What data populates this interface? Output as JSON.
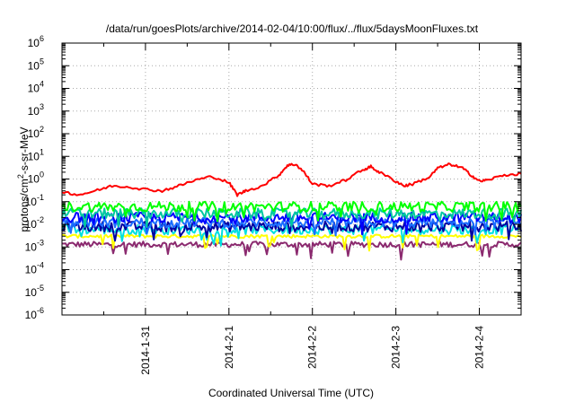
{
  "chart_data": {
    "type": "line",
    "title": "/data/run/goesPlots/archive/2014-02-04/10:00/flux/../flux/5daysMoonFluxes.txt",
    "xlabel": "Coordinated Universal Time (UTC)",
    "ylabel": "protons/cm2-s-sr-MeV",
    "yscale": "log",
    "ylim": [
      1e-06,
      1000000.0
    ],
    "xlim_days": [
      0,
      5.5
    ],
    "grid": true,
    "x_ticks": [
      {
        "label": "2014-1-31",
        "day": 1
      },
      {
        "label": "2014-2-1",
        "day": 2
      },
      {
        "label": "2014-2-2",
        "day": 3
      },
      {
        "label": "2014-2-3",
        "day": 4
      },
      {
        "label": "2014-2-4",
        "day": 5
      }
    ],
    "y_ticks": [
      -6,
      -5,
      -4,
      -3,
      -2,
      -1,
      0,
      1,
      2,
      3,
      4,
      5,
      6
    ],
    "series": [
      {
        "color": "#ff0000",
        "points": [
          [
            0.0,
            0.28
          ],
          [
            0.2,
            0.2
          ],
          [
            0.4,
            0.3
          ],
          [
            0.6,
            0.5
          ],
          [
            0.8,
            0.45
          ],
          [
            1.0,
            0.35
          ],
          [
            1.2,
            0.3
          ],
          [
            1.4,
            0.5
          ],
          [
            1.6,
            0.9
          ],
          [
            1.8,
            1.3
          ],
          [
            2.0,
            0.7
          ],
          [
            2.1,
            0.2
          ],
          [
            2.2,
            0.3
          ],
          [
            2.4,
            0.5
          ],
          [
            2.6,
            1.5
          ],
          [
            2.7,
            4.0
          ],
          [
            2.8,
            4.5
          ],
          [
            2.9,
            2.0
          ],
          [
            3.0,
            0.6
          ],
          [
            3.2,
            0.5
          ],
          [
            3.4,
            0.9
          ],
          [
            3.6,
            2.5
          ],
          [
            3.7,
            3.5
          ],
          [
            3.8,
            2.0
          ],
          [
            4.0,
            0.8
          ],
          [
            4.1,
            0.5
          ],
          [
            4.2,
            0.6
          ],
          [
            4.4,
            1.2
          ],
          [
            4.5,
            3.0
          ],
          [
            4.65,
            4.5
          ],
          [
            4.8,
            3.0
          ],
          [
            4.9,
            1.5
          ],
          [
            5.0,
            0.8
          ],
          [
            5.1,
            0.9
          ],
          [
            5.3,
            1.5
          ],
          [
            5.5,
            1.7
          ]
        ]
      },
      {
        "color": "#00ff00",
        "level": 0.06
      },
      {
        "color": "#00c8a0",
        "level": 0.03
      },
      {
        "color": "#0000ff",
        "level": 0.02
      },
      {
        "color": "#1a6cff",
        "level": 0.012
      },
      {
        "color": "#0000a0",
        "level": 0.008
      },
      {
        "color": "#00e0e0",
        "level": 0.006
      },
      {
        "color": "#ffff00",
        "level": 0.003
      },
      {
        "color": "#8b2a6f",
        "level": 0.0013
      }
    ]
  }
}
